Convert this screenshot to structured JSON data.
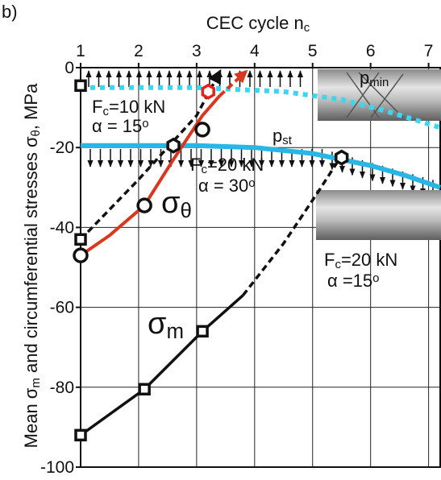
{
  "chart_data": {
    "type": "line",
    "panel_label": "b)",
    "xlabel": [
      "CEC cycle n",
      {
        "sub": "c"
      }
    ],
    "ylabel": [
      "Mean σ",
      {
        "sub": "m"
      },
      " and circumferential stresses σ",
      {
        "sub": "θ"
      },
      ", MPa"
    ],
    "xlim": [
      1,
      7.2
    ],
    "ylim": [
      -100,
      0
    ],
    "xticks": [
      1,
      2,
      3,
      4,
      5,
      6,
      7
    ],
    "yticks": [
      0,
      -20,
      -40,
      -60,
      -80,
      -100
    ],
    "grid": true,
    "series": [
      {
        "color": "#3cd6f0",
        "style": "dotted",
        "x": [
          1,
          3,
          4.5,
          5.5,
          6.3,
          7.2
        ],
        "values": [
          -5,
          -5,
          -6,
          -8,
          -11,
          -15
        ]
      },
      {
        "color": "#27b6e6",
        "style": "solid",
        "x": [
          1,
          3,
          4,
          5,
          6,
          6.6,
          7.2
        ],
        "values": [
          -19.5,
          -19.5,
          -20,
          -21.5,
          -24.5,
          -27,
          -30
        ]
      },
      {
        "color": "#d9381e",
        "style": "solid",
        "x": [
          1,
          1.5,
          2.1,
          2.6,
          3.1,
          3.4
        ],
        "values": [
          -47,
          -42,
          -34.5,
          -23,
          -12,
          -7
        ]
      },
      {
        "color": "#d9381e",
        "style": "dashed",
        "arrow": true,
        "x": [
          3.4,
          3.85
        ],
        "values": [
          -7,
          -1
        ]
      },
      {
        "color": "#111111",
        "style": "dashed",
        "arrow": true,
        "x": [
          1,
          2,
          3,
          3.4
        ],
        "values": [
          -43,
          -28,
          -12,
          -1
        ]
      },
      {
        "color": "#111111",
        "style": "solid",
        "x": [
          1,
          2.1,
          3.1,
          3.8
        ],
        "values": [
          -92,
          -80.5,
          -66,
          -57
        ]
      },
      {
        "color": "#111111",
        "style": "dashed",
        "x": [
          3.8,
          4.5,
          5.1,
          5.5
        ],
        "values": [
          -57,
          -44,
          -31,
          -22
        ]
      }
    ],
    "markers": [
      {
        "marker": "square",
        "color": "#111111",
        "x": [
          1,
          1,
          1,
          2.1,
          3.1
        ],
        "values": [
          -4.5,
          -43,
          -92,
          -80.5,
          -66
        ]
      },
      {
        "marker": "circle",
        "color": "#111111",
        "x": [
          1,
          2.1,
          3.1
        ],
        "values": [
          -47,
          -34.5,
          -15.5
        ]
      },
      {
        "marker": "hexagon",
        "color": "#111111",
        "x": [
          2.6,
          5.5
        ],
        "values": [
          -19.5,
          -22.5
        ]
      },
      {
        "marker": "hexagon",
        "color": "#e8201a",
        "x": [
          3.2
        ],
        "values": [
          -6
        ]
      }
    ],
    "annotations": [
      [
        "p",
        {
          "sub": "min"
        }
      ],
      [
        "p",
        {
          "sub": "st"
        }
      ],
      [
        "F",
        {
          "sub": "c"
        },
        "=10 kN"
      ],
      [
        "α = 15",
        {
          "sup": "o"
        }
      ],
      [
        "F",
        {
          "sub": "c"
        },
        "=20 kN"
      ],
      [
        "α = 30",
        {
          "sup": "o"
        }
      ],
      [
        "σ",
        {
          "sub": "θ"
        }
      ],
      [
        "σ",
        {
          "sub": "m"
        }
      ],
      [
        "F",
        {
          "sub": "c"
        },
        "=20 kN"
      ],
      [
        "α =15",
        {
          "sup": "o"
        }
      ]
    ]
  }
}
